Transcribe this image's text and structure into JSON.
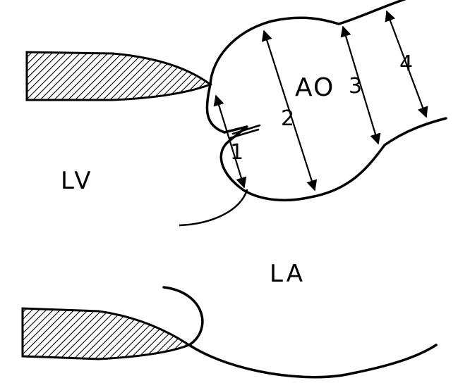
{
  "diagram": {
    "chamber_labels": {
      "lv": "LV",
      "la": "LA",
      "ao": "AO"
    },
    "measurement_labels": [
      "1",
      "2",
      "3",
      "4"
    ],
    "colors": {
      "stroke": "#000000",
      "background": "#ffffff"
    }
  }
}
